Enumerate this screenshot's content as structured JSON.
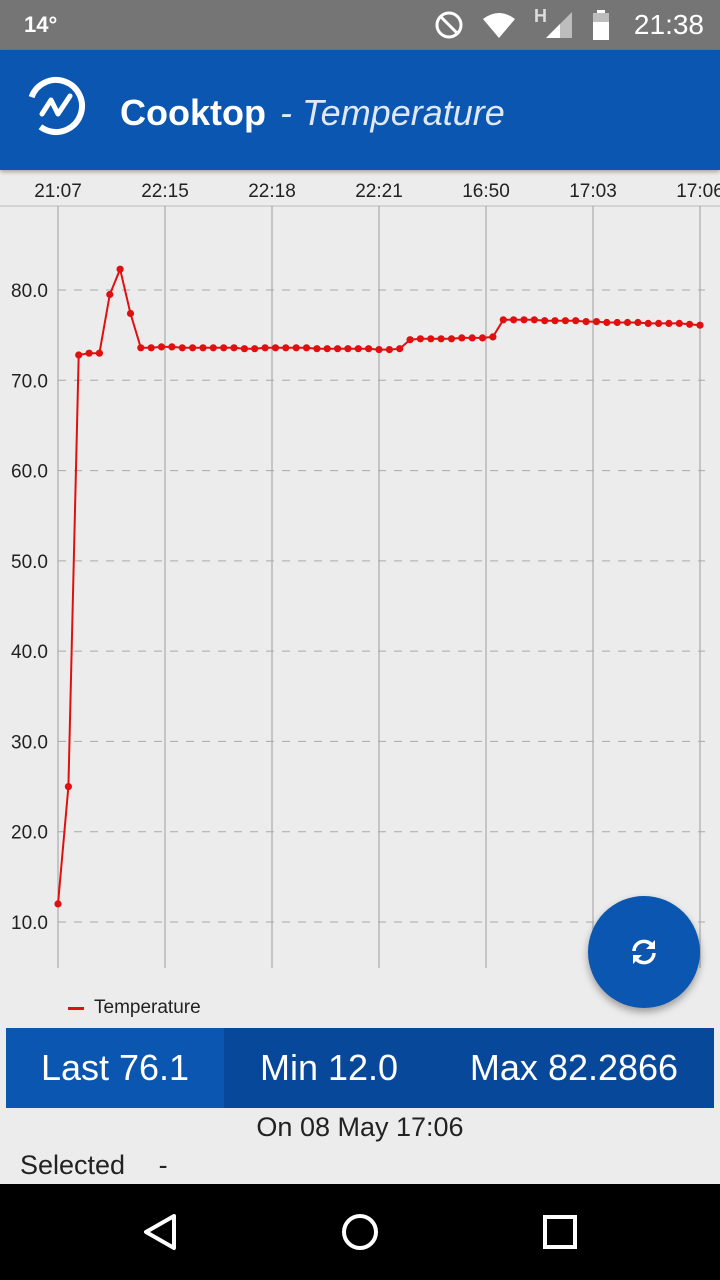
{
  "status_bar": {
    "temperature": "14°",
    "time": "21:38",
    "network_letter": "H",
    "icons": [
      "do-not-disturb-icon",
      "wifi-icon",
      "signal-icon",
      "battery-icon"
    ]
  },
  "app_bar": {
    "title": "Cooktop",
    "subtitle": "- Temperature"
  },
  "chart_data": {
    "type": "line",
    "x_tick_labels": [
      "21:07",
      "22:15",
      "22:18",
      "22:21",
      "16:50",
      "17:03",
      "17:06"
    ],
    "y_tick_labels": [
      "10.0",
      "20.0",
      "30.0",
      "40.0",
      "50.0",
      "60.0",
      "70.0",
      "80.0"
    ],
    "y_ticks": [
      10,
      20,
      30,
      40,
      50,
      60,
      70,
      80
    ],
    "ylim": [
      5,
      90
    ],
    "grid": true,
    "legend": "bottom-left",
    "series": [
      {
        "name": "Temperature",
        "color": "#e01010",
        "values": [
          12.0,
          25.0,
          72.8,
          73.0,
          73.0,
          79.5,
          82.3,
          77.4,
          73.6,
          73.6,
          73.7,
          73.7,
          73.6,
          73.6,
          73.6,
          73.6,
          73.6,
          73.6,
          73.5,
          73.5,
          73.6,
          73.6,
          73.6,
          73.6,
          73.6,
          73.5,
          73.5,
          73.5,
          73.5,
          73.5,
          73.5,
          73.4,
          73.4,
          73.5,
          74.5,
          74.6,
          74.6,
          74.6,
          74.6,
          74.7,
          74.7,
          74.7,
          74.8,
          76.7,
          76.7,
          76.7,
          76.7,
          76.6,
          76.6,
          76.6,
          76.6,
          76.5,
          76.5,
          76.4,
          76.4,
          76.4,
          76.4,
          76.3,
          76.3,
          76.3,
          76.3,
          76.2,
          76.1
        ]
      }
    ]
  },
  "stats": {
    "last_label": "Last",
    "last_value": "76.1",
    "min_label": "Min",
    "min_value": "12.0",
    "max_label": "Max",
    "max_value": "82.2866"
  },
  "on_date": "On 08 May 17:06",
  "selected": {
    "label": "Selected",
    "value": "-"
  },
  "fab": {
    "icon": "refresh-icon"
  },
  "nav": {
    "icons": [
      "back-icon",
      "home-icon",
      "recents-icon"
    ]
  }
}
